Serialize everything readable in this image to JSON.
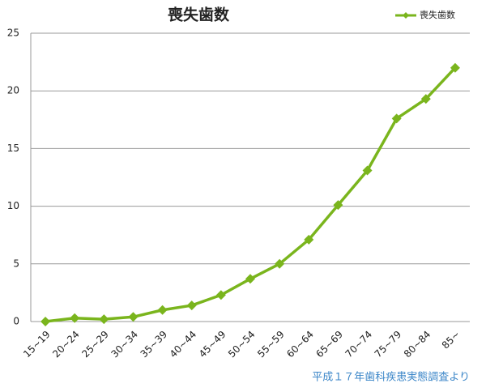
{
  "chart_data": {
    "type": "line",
    "title": "喪失歯数",
    "categories": [
      "15~19",
      "20~24",
      "25~29",
      "30~34",
      "35~39",
      "40~44",
      "45~49",
      "50~54",
      "55~59",
      "60~64",
      "65~69",
      "70~74",
      "75~79",
      "80~84",
      "85~"
    ],
    "series": [
      {
        "name": "喪失歯数",
        "color": "#7ab51d",
        "values": [
          0.0,
          0.3,
          0.2,
          0.4,
          1.0,
          1.4,
          2.3,
          3.7,
          5.0,
          7.1,
          10.1,
          13.1,
          17.6,
          19.3,
          22.0
        ]
      }
    ],
    "ylim": [
      0,
      25
    ],
    "yticks": [
      0,
      5,
      10,
      15,
      20,
      25
    ],
    "grid": true,
    "legend": "top-right",
    "source": "平成１７年歯科疾患実態調査より"
  }
}
